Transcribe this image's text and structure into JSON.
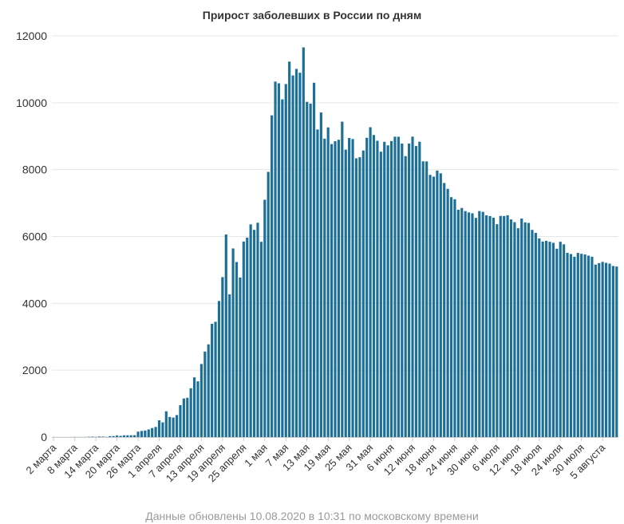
{
  "chart_data": {
    "type": "bar",
    "title": "Прирост заболевших в России по дням",
    "xlabel": "",
    "ylabel": "",
    "ylim": [
      0,
      12000
    ],
    "yticks": [
      0,
      2000,
      4000,
      6000,
      8000,
      10000,
      12000
    ],
    "grid": true,
    "legend": "none",
    "bar_color": "#1c6f96",
    "grid_color": "#e6e6e6",
    "x_tick_labels": [
      "2 марта",
      "8 марта",
      "14 марта",
      "20 марта",
      "26 марта",
      "1 апреля",
      "7 апреля",
      "13 апреля",
      "19 апреля",
      "25 апреля",
      "1 мая",
      "7 мая",
      "13 мая",
      "19 мая",
      "25 мая",
      "31 мая",
      "6 июня",
      "12 июня",
      "18 июня",
      "24 июня",
      "30 июня",
      "6 июля",
      "12 июля",
      "18 июля",
      "24 июля",
      "30 июля",
      "5 августа"
    ],
    "x_tick_step": 6,
    "values": [
      3,
      0,
      0,
      0,
      0,
      2,
      4,
      3,
      1,
      3,
      8,
      13,
      6,
      17,
      14,
      5,
      27,
      31,
      46,
      35,
      52,
      53,
      54,
      57,
      163,
      182,
      196,
      228,
      270,
      302,
      501,
      440,
      771,
      601,
      582,
      658,
      954,
      1154,
      1175,
      1459,
      1786,
      1667,
      2186,
      2558,
      2774,
      3388,
      3448,
      4070,
      4785,
      6060,
      4268,
      5642,
      5236,
      4774,
      5849,
      5966,
      6361,
      6198,
      6411,
      5841,
      7099,
      7933,
      9623,
      10633,
      10581,
      10102,
      10559,
      11231,
      10817,
      11012,
      10899,
      11656,
      10028,
      9974,
      10598,
      9200,
      9709,
      8926,
      9263,
      8764,
      8849,
      8894,
      9434,
      8599,
      8946,
      8915,
      8338,
      8371,
      8572,
      8952,
      9268,
      9035,
      8863,
      8536,
      8831,
      8726,
      8855,
      8985,
      8984,
      8779,
      8404,
      8779,
      8987,
      8706,
      8835,
      8248,
      8246,
      7843,
      7790,
      7972,
      7889,
      7600,
      7425,
      7176,
      7113,
      6800,
      6852,
      6760,
      6719,
      6693,
      6556,
      6760,
      6736,
      6632,
      6611,
      6562,
      6368,
      6615,
      6611,
      6635,
      6509,
      6428,
      6248,
      6537,
      6422,
      6406,
      6197,
      6109,
      5940,
      5848,
      5871,
      5842,
      5811,
      5635,
      5842,
      5765,
      5509,
      5475,
      5395,
      5509,
      5482,
      5462,
      5427,
      5394,
      5159,
      5204,
      5241,
      5212,
      5189,
      5118,
      5102
    ]
  },
  "footer_text": "Данные обновлены 10.08.2020 в 10:31 по московскому времени"
}
